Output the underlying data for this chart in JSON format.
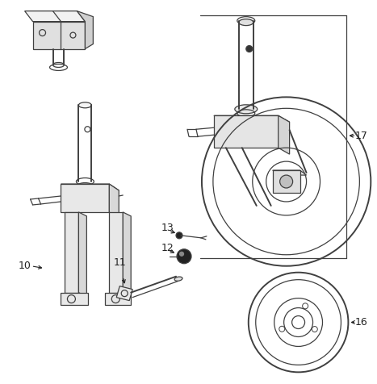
{
  "background_color": "#ffffff",
  "line_color": "#404040",
  "label_color": "#222222",
  "fig_width": 4.67,
  "fig_height": 4.76,
  "dpi": 100
}
